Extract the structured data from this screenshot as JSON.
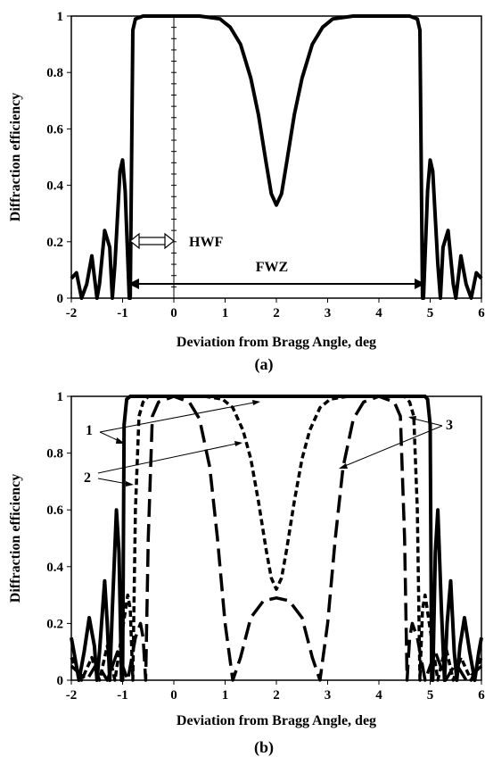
{
  "chart_data": [
    {
      "type": "line",
      "panel_label": "(a)",
      "xlabel": "Deviation from Bragg Angle, deg",
      "ylabel": "Diffraction efficiency",
      "xlim": [
        -2,
        6
      ],
      "ylim": [
        0,
        1
      ],
      "x_ticks": [
        "-2",
        "-1",
        "0",
        "1",
        "2",
        "3",
        "4",
        "5",
        "6"
      ],
      "y_ticks": [
        "0",
        "0.2",
        "0.4",
        "0.6",
        "0.8",
        "1"
      ],
      "grid": false,
      "annotations": [
        {
          "text": "HWF",
          "x_from": -0.85,
          "x_to": 0,
          "y": 0.2
        },
        {
          "text": "FWZ",
          "x_from": -0.85,
          "x_to": 4.85,
          "y": 0.05
        }
      ],
      "series": [
        {
          "style": "solid",
          "points": [
            [
              -2.0,
              0.07
            ],
            [
              -1.9,
              0.09
            ],
            [
              -1.8,
              0.0
            ],
            [
              -1.7,
              0.05
            ],
            [
              -1.6,
              0.15
            ],
            [
              -1.5,
              0.0
            ],
            [
              -1.45,
              0.05
            ],
            [
              -1.35,
              0.24
            ],
            [
              -1.25,
              0.18
            ],
            [
              -1.2,
              0.0
            ],
            [
              -1.15,
              0.12
            ],
            [
              -1.05,
              0.45
            ],
            [
              -1.0,
              0.49
            ],
            [
              -0.95,
              0.38
            ],
            [
              -0.87,
              0.0
            ],
            [
              -0.85,
              0.0
            ],
            [
              -0.8,
              0.95
            ],
            [
              -0.75,
              0.99
            ],
            [
              -0.6,
              1.0
            ],
            [
              0.5,
              1.0
            ],
            [
              0.9,
              0.99
            ],
            [
              1.1,
              0.96
            ],
            [
              1.3,
              0.9
            ],
            [
              1.5,
              0.78
            ],
            [
              1.65,
              0.65
            ],
            [
              1.8,
              0.48
            ],
            [
              1.9,
              0.37
            ],
            [
              2.0,
              0.33
            ],
            [
              2.1,
              0.37
            ],
            [
              2.2,
              0.48
            ],
            [
              2.35,
              0.65
            ],
            [
              2.5,
              0.78
            ],
            [
              2.7,
              0.9
            ],
            [
              2.9,
              0.96
            ],
            [
              3.1,
              0.99
            ],
            [
              3.5,
              1.0
            ],
            [
              4.6,
              1.0
            ],
            [
              4.75,
              0.99
            ],
            [
              4.8,
              0.95
            ],
            [
              4.85,
              0.0
            ],
            [
              4.87,
              0.0
            ],
            [
              4.95,
              0.38
            ],
            [
              5.0,
              0.49
            ],
            [
              5.05,
              0.45
            ],
            [
              5.15,
              0.12
            ],
            [
              5.2,
              0.0
            ],
            [
              5.25,
              0.18
            ],
            [
              5.35,
              0.24
            ],
            [
              5.45,
              0.05
            ],
            [
              5.5,
              0.0
            ],
            [
              5.6,
              0.15
            ],
            [
              5.7,
              0.05
            ],
            [
              5.8,
              0.0
            ],
            [
              5.9,
              0.09
            ],
            [
              6.0,
              0.07
            ]
          ]
        }
      ]
    },
    {
      "type": "line",
      "panel_label": "(b)",
      "xlabel": "Deviation from Bragg Angle, deg",
      "ylabel": "Diffraction efficiency",
      "xlim": [
        -2,
        6
      ],
      "ylim": [
        0,
        1
      ],
      "x_ticks": [
        "-2",
        "-1",
        "0",
        "1",
        "2",
        "3",
        "4",
        "5",
        "6"
      ],
      "y_ticks": [
        "0",
        "0.2",
        "0.4",
        "0.6",
        "0.8",
        "1"
      ],
      "grid": false,
      "labels": [
        "1",
        "2",
        "3"
      ],
      "series": [
        {
          "name": "1",
          "style": "solid",
          "points": [
            [
              -2.0,
              0.15
            ],
            [
              -1.95,
              0.1
            ],
            [
              -1.85,
              0.0
            ],
            [
              -1.75,
              0.1
            ],
            [
              -1.65,
              0.22
            ],
            [
              -1.55,
              0.12
            ],
            [
              -1.5,
              0.0
            ],
            [
              -1.45,
              0.1
            ],
            [
              -1.35,
              0.35
            ],
            [
              -1.3,
              0.2
            ],
            [
              -1.25,
              0.0
            ],
            [
              -1.2,
              0.25
            ],
            [
              -1.12,
              0.6
            ],
            [
              -1.07,
              0.45
            ],
            [
              -1.02,
              0.0
            ],
            [
              -1.0,
              0.0
            ],
            [
              -0.97,
              0.9
            ],
            [
              -0.92,
              0.99
            ],
            [
              -0.85,
              1.0
            ],
            [
              4.9,
              1.0
            ],
            [
              4.95,
              0.99
            ],
            [
              5.0,
              0.9
            ],
            [
              5.03,
              0.0
            ],
            [
              5.05,
              0.0
            ],
            [
              5.1,
              0.45
            ],
            [
              5.15,
              0.6
            ],
            [
              5.22,
              0.25
            ],
            [
              5.28,
              0.0
            ],
            [
              5.33,
              0.2
            ],
            [
              5.4,
              0.35
            ],
            [
              5.47,
              0.1
            ],
            [
              5.52,
              0.0
            ],
            [
              5.58,
              0.12
            ],
            [
              5.67,
              0.22
            ],
            [
              5.77,
              0.1
            ],
            [
              5.87,
              0.0
            ],
            [
              5.95,
              0.1
            ],
            [
              6.0,
              0.15
            ]
          ]
        },
        {
          "name": "2",
          "style": "short-dash",
          "points": [
            [
              -2.0,
              0.08
            ],
            [
              -1.8,
              0.0
            ],
            [
              -1.6,
              0.08
            ],
            [
              -1.45,
              0.0
            ],
            [
              -1.3,
              0.12
            ],
            [
              -1.15,
              0.0
            ],
            [
              -1.0,
              0.18
            ],
            [
              -0.9,
              0.3
            ],
            [
              -0.85,
              0.25
            ],
            [
              -0.8,
              0.0
            ],
            [
              -0.75,
              0.6
            ],
            [
              -0.68,
              0.93
            ],
            [
              -0.6,
              0.98
            ],
            [
              -0.5,
              1.0
            ],
            [
              0.6,
              1.0
            ],
            [
              0.95,
              0.99
            ],
            [
              1.15,
              0.96
            ],
            [
              1.35,
              0.88
            ],
            [
              1.5,
              0.78
            ],
            [
              1.65,
              0.63
            ],
            [
              1.8,
              0.46
            ],
            [
              1.9,
              0.36
            ],
            [
              2.0,
              0.32
            ],
            [
              2.1,
              0.36
            ],
            [
              2.2,
              0.46
            ],
            [
              2.35,
              0.63
            ],
            [
              2.5,
              0.78
            ],
            [
              2.65,
              0.88
            ],
            [
              2.85,
              0.96
            ],
            [
              3.05,
              0.99
            ],
            [
              3.4,
              1.0
            ],
            [
              4.5,
              1.0
            ],
            [
              4.6,
              0.98
            ],
            [
              4.68,
              0.93
            ],
            [
              4.75,
              0.6
            ],
            [
              4.8,
              0.0
            ],
            [
              4.85,
              0.25
            ],
            [
              4.9,
              0.3
            ],
            [
              5.0,
              0.18
            ],
            [
              5.15,
              0.0
            ],
            [
              5.3,
              0.12
            ],
            [
              5.45,
              0.0
            ],
            [
              5.6,
              0.08
            ],
            [
              5.8,
              0.0
            ],
            [
              6.0,
              0.08
            ]
          ]
        },
        {
          "name": "3",
          "style": "long-dash",
          "points": [
            [
              -2.0,
              0.05
            ],
            [
              -1.7,
              0.0
            ],
            [
              -1.5,
              0.06
            ],
            [
              -1.3,
              0.0
            ],
            [
              -1.1,
              0.1
            ],
            [
              -0.9,
              0.0
            ],
            [
              -0.75,
              0.15
            ],
            [
              -0.65,
              0.2
            ],
            [
              -0.6,
              0.15
            ],
            [
              -0.55,
              0.0
            ],
            [
              -0.5,
              0.5
            ],
            [
              -0.42,
              0.93
            ],
            [
              -0.3,
              0.98
            ],
            [
              0.0,
              1.0
            ],
            [
              0.3,
              0.98
            ],
            [
              0.5,
              0.92
            ],
            [
              0.7,
              0.75
            ],
            [
              0.85,
              0.5
            ],
            [
              1.0,
              0.2
            ],
            [
              1.15,
              0.0
            ],
            [
              1.3,
              0.08
            ],
            [
              1.5,
              0.22
            ],
            [
              1.75,
              0.28
            ],
            [
              2.0,
              0.29
            ],
            [
              2.25,
              0.28
            ],
            [
              2.5,
              0.22
            ],
            [
              2.7,
              0.08
            ],
            [
              2.85,
              0.0
            ],
            [
              3.0,
              0.2
            ],
            [
              3.15,
              0.5
            ],
            [
              3.3,
              0.75
            ],
            [
              3.5,
              0.92
            ],
            [
              3.7,
              0.98
            ],
            [
              4.0,
              1.0
            ],
            [
              4.3,
              0.98
            ],
            [
              4.42,
              0.93
            ],
            [
              4.5,
              0.5
            ],
            [
              4.55,
              0.0
            ],
            [
              4.6,
              0.15
            ],
            [
              4.65,
              0.2
            ],
            [
              4.75,
              0.15
            ],
            [
              4.9,
              0.0
            ],
            [
              5.1,
              0.1
            ],
            [
              5.3,
              0.0
            ],
            [
              5.5,
              0.06
            ],
            [
              5.7,
              0.0
            ],
            [
              6.0,
              0.05
            ]
          ]
        }
      ]
    }
  ]
}
